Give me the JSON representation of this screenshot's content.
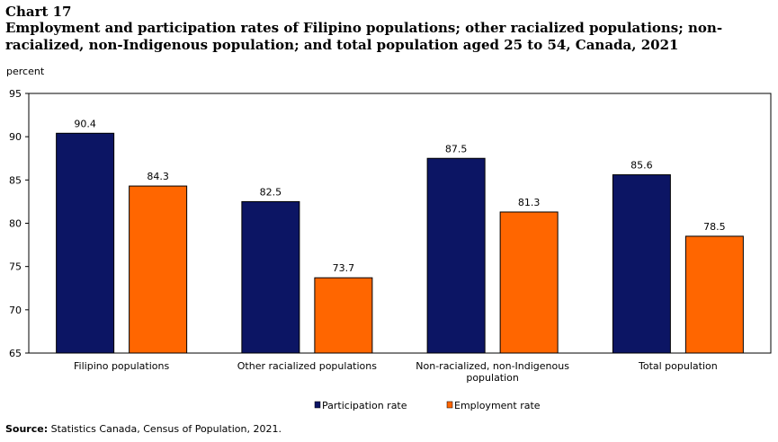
{
  "header": {
    "chart_number": "Chart 17",
    "title": "Employment and participation rates of Filipino populations; other racialized populations; non-racialized, non-Indigenous population; and total population aged 25 to 54, Canada, 2021"
  },
  "chart_data": {
    "type": "bar",
    "ylabel": "percent",
    "xlabel": "",
    "ylim": [
      65,
      95
    ],
    "yticks": [
      65,
      70,
      75,
      80,
      85,
      90,
      95
    ],
    "grid": false,
    "legend_position": "bottom",
    "categories": [
      "Filipino populations",
      "Other racialized populations",
      "Non-racialized, non-Indigenous population",
      "Total population"
    ],
    "series": [
      {
        "name": "Participation rate",
        "color": "#0c1564",
        "values": [
          90.4,
          82.5,
          87.5,
          85.6
        ]
      },
      {
        "name": "Employment rate",
        "color": "#ff6600",
        "values": [
          84.3,
          73.7,
          81.3,
          78.5
        ]
      }
    ]
  },
  "footer": {
    "source_label": "Source:",
    "source_text": " Statistics Canada, Census of Population, 2021."
  }
}
